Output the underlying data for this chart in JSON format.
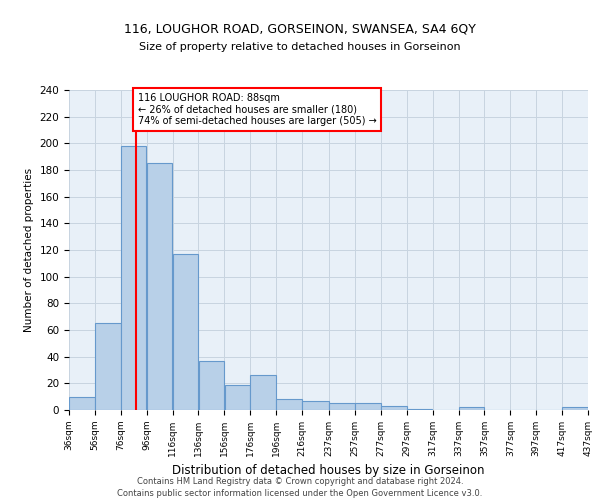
{
  "title1": "116, LOUGHOR ROAD, GORSEINON, SWANSEA, SA4 6QY",
  "title2": "Size of property relative to detached houses in Gorseinon",
  "xlabel": "Distribution of detached houses by size in Gorseinon",
  "ylabel": "Number of detached properties",
  "bar_color": "#b8d0e8",
  "bar_edge_color": "#6699cc",
  "grid_color": "#c8d4e0",
  "bg_color": "#e8f0f8",
  "vline_x": 88,
  "vline_color": "red",
  "annotation_text": "116 LOUGHOR ROAD: 88sqm\n← 26% of detached houses are smaller (180)\n74% of semi-detached houses are larger (505) →",
  "bin_edges": [
    36,
    56,
    76,
    96,
    116,
    136,
    156,
    176,
    196,
    216,
    237,
    257,
    277,
    297,
    317,
    337,
    357,
    377,
    397,
    417,
    437
  ],
  "bar_heights": [
    10,
    65,
    198,
    185,
    117,
    37,
    19,
    26,
    8,
    7,
    5,
    5,
    3,
    1,
    0,
    2,
    0,
    0,
    0,
    2
  ],
  "ylim": [
    0,
    240
  ],
  "yticks": [
    0,
    20,
    40,
    60,
    80,
    100,
    120,
    140,
    160,
    180,
    200,
    220,
    240
  ],
  "footer1": "Contains HM Land Registry data © Crown copyright and database right 2024.",
  "footer2": "Contains public sector information licensed under the Open Government Licence v3.0."
}
